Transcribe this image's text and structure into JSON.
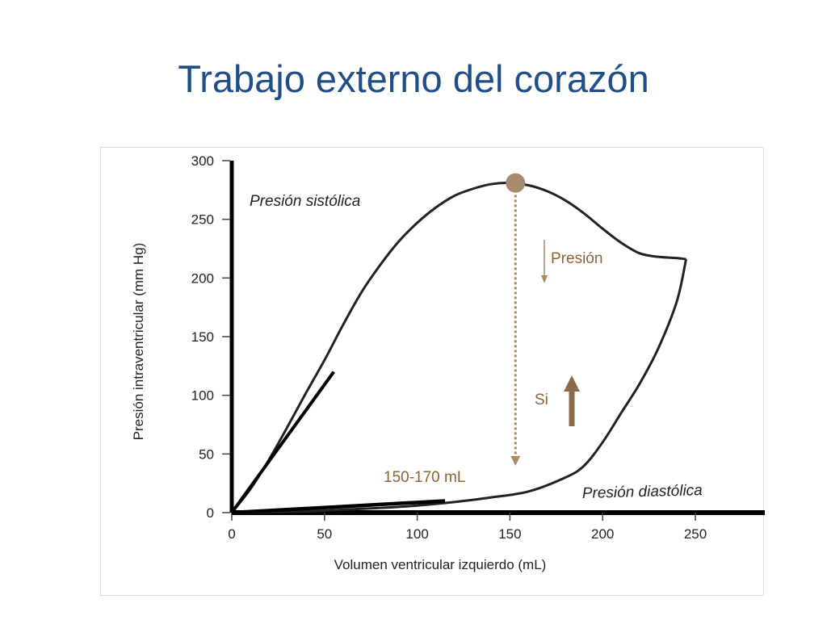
{
  "slide": {
    "title": "Trabajo externo del corazón"
  },
  "chart_data": {
    "type": "line",
    "xlabel": "Volumen ventricular izquierdo (mL)",
    "ylabel": "Presión intraventricular (mm Hg)",
    "xlim": [
      0,
      280
    ],
    "ylim": [
      0,
      300
    ],
    "xticks": [
      0,
      50,
      100,
      150,
      200,
      250
    ],
    "yticks": [
      0,
      50,
      100,
      150,
      200,
      250,
      300
    ],
    "grid": false,
    "series": [
      {
        "name": "Presión sistólica",
        "x": [
          0,
          10,
          20,
          30,
          40,
          50,
          60,
          70,
          80,
          90,
          100,
          110,
          120,
          130,
          140,
          150,
          160,
          170,
          180,
          190,
          200,
          210,
          220,
          230,
          240,
          245
        ],
        "y": [
          0,
          20,
          45,
          73,
          102,
          130,
          160,
          188,
          211,
          231,
          247,
          260,
          270,
          276,
          280,
          281,
          279,
          274,
          266,
          255,
          242,
          230,
          221,
          218,
          217,
          216
        ]
      },
      {
        "name": "Presión diastólica",
        "x": [
          0,
          20,
          40,
          60,
          80,
          100,
          120,
          140,
          160,
          180,
          190,
          200,
          210,
          220,
          230,
          240,
          245
        ],
        "y": [
          0,
          0.5,
          1,
          2.5,
          4,
          6,
          9,
          13,
          18,
          30,
          40,
          60,
          85,
          110,
          140,
          180,
          216
        ]
      }
    ],
    "annotations": {
      "peak_point": {
        "x": 153,
        "y": 281
      },
      "drop_line": {
        "x": 153,
        "y_top": 275,
        "y_bottom": 40
      },
      "volume_label": "150-170 mL",
      "pressure_label": "Presión",
      "si_label": "Si"
    },
    "colors": {
      "curve": "#222222",
      "accent": "#a88a6c",
      "accent_text": "#8a6436",
      "arrow": "#8a6a4a",
      "axis": "#000000"
    }
  }
}
